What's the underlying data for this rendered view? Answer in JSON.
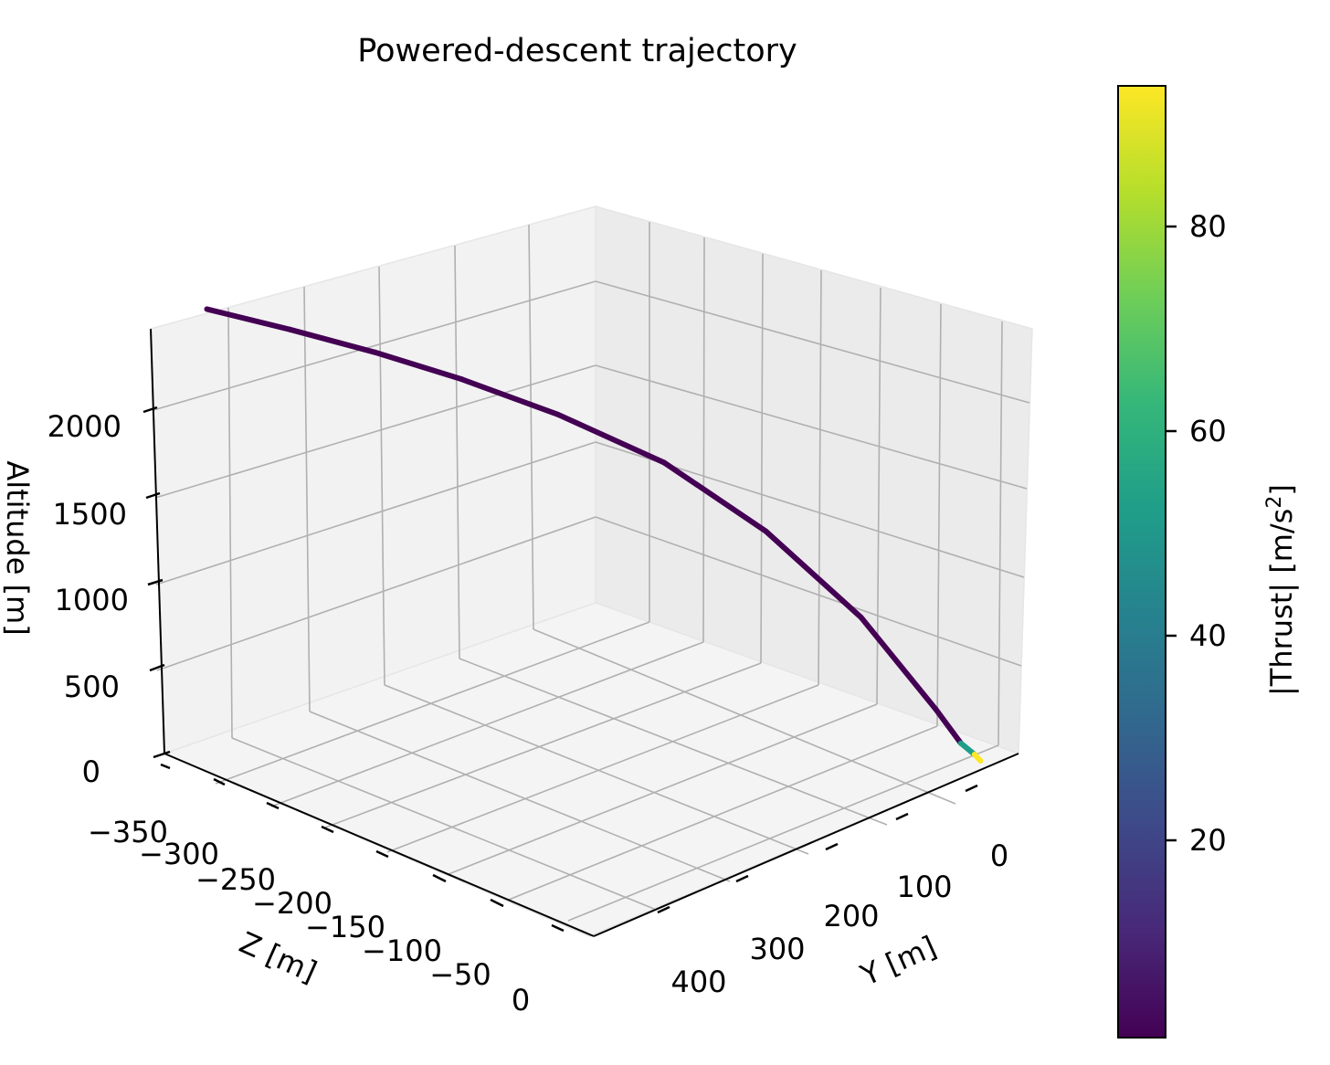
{
  "chart_data": {
    "type": "line",
    "subtype": "3d-line",
    "title": "Powered-descent trajectory",
    "axes": {
      "y": {
        "label": "Y [m]",
        "ticks": [
          "0",
          "100",
          "200",
          "300",
          "400"
        ],
        "range": [
          -30,
          450
        ]
      },
      "z": {
        "label": "Z [m]",
        "ticks": [
          "−350",
          "−300",
          "−250",
          "−200",
          "−150",
          "−100",
          "−50",
          "0"
        ],
        "range": [
          -370,
          10
        ]
      },
      "altitude": {
        "label": "Altitude [m]",
        "ticks": [
          "0",
          "500",
          "1000",
          "1500",
          "2000"
        ],
        "range": [
          0,
          2400
        ]
      }
    },
    "grid": true,
    "colorbar": {
      "label_main": "|Thrust| [m/s",
      "label_sup": "2",
      "label_end": "]",
      "ticks": [
        "20",
        "40",
        "60",
        "80"
      ],
      "range": [
        1,
        93
      ],
      "colormap": [
        "#440154",
        "#482878",
        "#3e4989",
        "#31688e",
        "#26828e",
        "#1f9e89",
        "#35b779",
        "#6ece58",
        "#b5de2b",
        "#fde725"
      ]
    },
    "series": [
      {
        "points": [
          {
            "z": -350,
            "y": 400,
            "alt": 2450,
            "thrust": 2
          },
          {
            "z": -300,
            "y": 372,
            "alt": 2420,
            "thrust": 2
          },
          {
            "z": -250,
            "y": 342,
            "alt": 2370,
            "thrust": 2
          },
          {
            "z": -200,
            "y": 310,
            "alt": 2290,
            "thrust": 2
          },
          {
            "z": -150,
            "y": 268,
            "alt": 2140,
            "thrust": 2
          },
          {
            "z": -100,
            "y": 215,
            "alt": 1890,
            "thrust": 2
          },
          {
            "z": -60,
            "y": 155,
            "alt": 1480,
            "thrust": 2
          },
          {
            "z": -30,
            "y": 90,
            "alt": 930,
            "thrust": 2
          },
          {
            "z": -10,
            "y": 35,
            "alt": 340,
            "thrust": 2
          },
          {
            "z": -5,
            "y": 15,
            "alt": 120,
            "thrust": 2
          },
          {
            "z": -2,
            "y": 4,
            "alt": 40,
            "thrust": 92
          },
          {
            "z": 0,
            "y": 0,
            "alt": 0,
            "thrust": 92
          }
        ]
      }
    ]
  }
}
